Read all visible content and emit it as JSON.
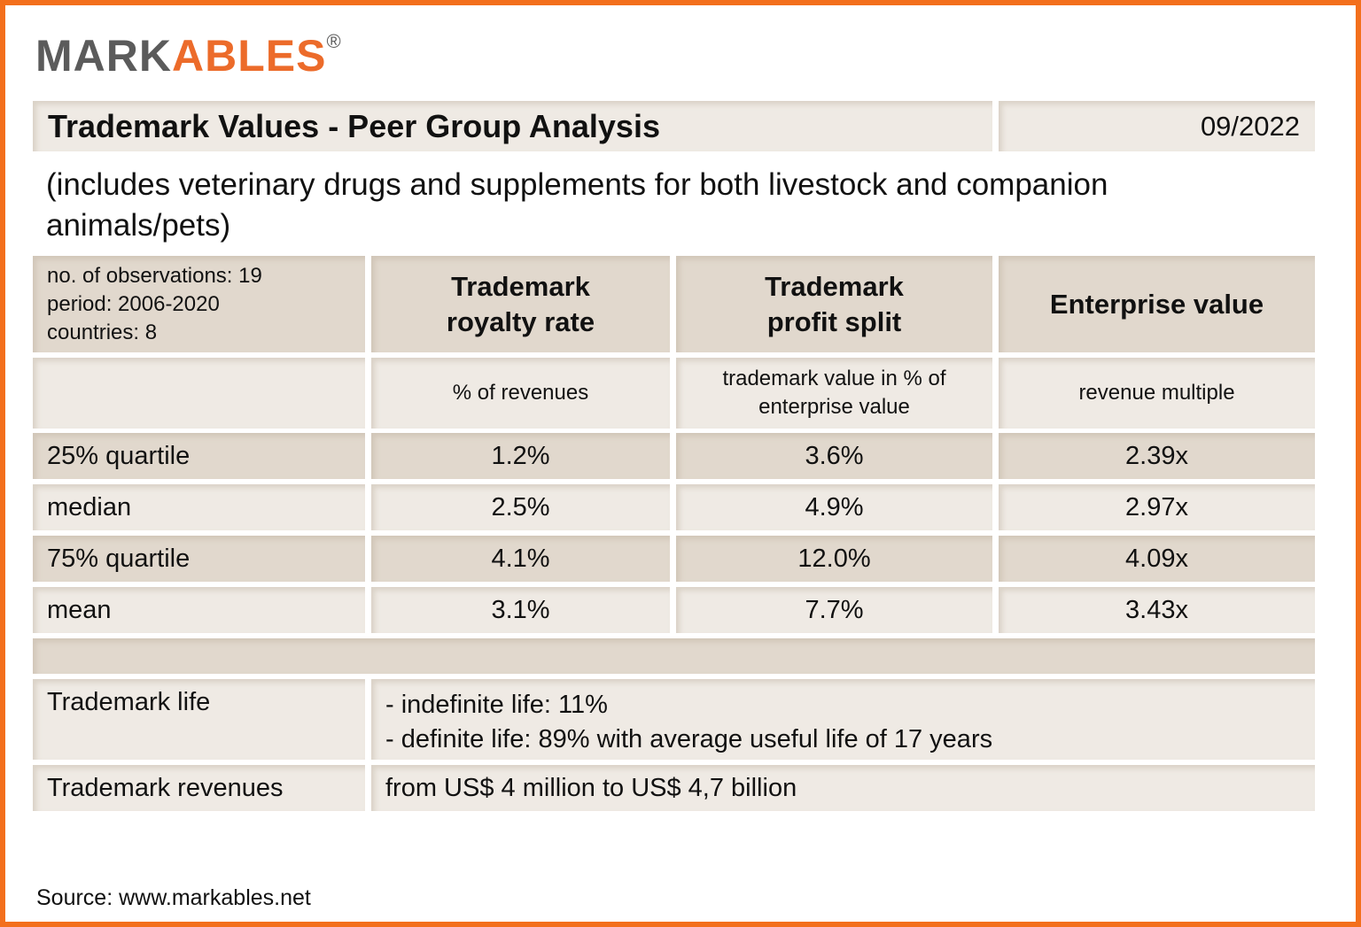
{
  "logo": {
    "part1": "MARK",
    "part2": "ABLES",
    "mark": "®",
    "colors": {
      "gray": "#5b5b5b",
      "orange": "#ec6b2a"
    }
  },
  "title": "Trademark Values - Peer Group Analysis",
  "date": "09/2022",
  "subtitle": "(includes veterinary drugs and supplements for both livestock and companion animals/pets)",
  "meta": [
    "no. of observations: 19",
    "period: 2006-2020",
    "countries: 8"
  ],
  "columns": [
    {
      "header": "Trademark royalty rate",
      "unit": "% of revenues"
    },
    {
      "header": "Trademark profit split",
      "unit": "trademark value in % of enterprise value"
    },
    {
      "header": "Enterprise value",
      "unit": "revenue multiple"
    }
  ],
  "rows": [
    {
      "label": "25% quartile",
      "values": [
        "1.2%",
        "3.6%",
        "2.39x"
      ]
    },
    {
      "label": "median",
      "values": [
        "2.5%",
        "4.9%",
        "2.97x"
      ]
    },
    {
      "label": "75% quartile",
      "values": [
        "4.1%",
        "12.0%",
        "4.09x"
      ]
    },
    {
      "label": "mean",
      "values": [
        "3.1%",
        "7.7%",
        "3.43x"
      ]
    }
  ],
  "life": {
    "label": "Trademark life",
    "lines": [
      "- indefinite life: 11%",
      "- definite life: 89% with average useful life of 17 years"
    ]
  },
  "revenues": {
    "label": "Trademark revenues",
    "value": "from US$ 4 million to US$ 4,7 billion"
  },
  "source": "Source: www.markables.net",
  "colors": {
    "border": "#f36f1c",
    "cell_light": "#efeae4",
    "cell_dark": "#e1d8cd"
  }
}
